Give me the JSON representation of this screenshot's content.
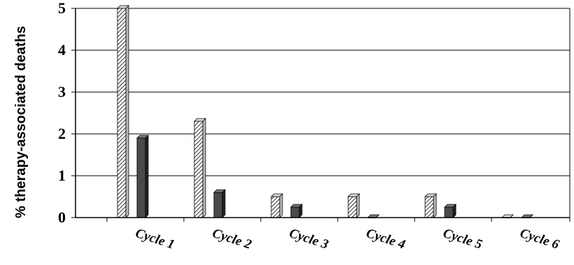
{
  "chart_data": {
    "type": "bar",
    "ylabel": "% therapy-associated deaths",
    "xlabel": "",
    "ylim": [
      0,
      5
    ],
    "yticks": [
      "0",
      "1",
      "2",
      "3",
      "4",
      "5"
    ],
    "grid": true,
    "legend": "none",
    "categories": [
      "Cycle 1",
      "Cycle 2",
      "Cycle 3",
      "Cycle 4",
      "Cycle 5",
      "Cycle 6"
    ],
    "series": [
      {
        "pattern": "hatched",
        "color": "#ffffff",
        "values": [
          5.0,
          2.3,
          0.5,
          0.5,
          0.5,
          0.0
        ]
      },
      {
        "pattern": "solid",
        "color": "#4a4a4a",
        "values": [
          1.9,
          0.6,
          0.25,
          0.0,
          0.25,
          0.0
        ]
      }
    ]
  }
}
